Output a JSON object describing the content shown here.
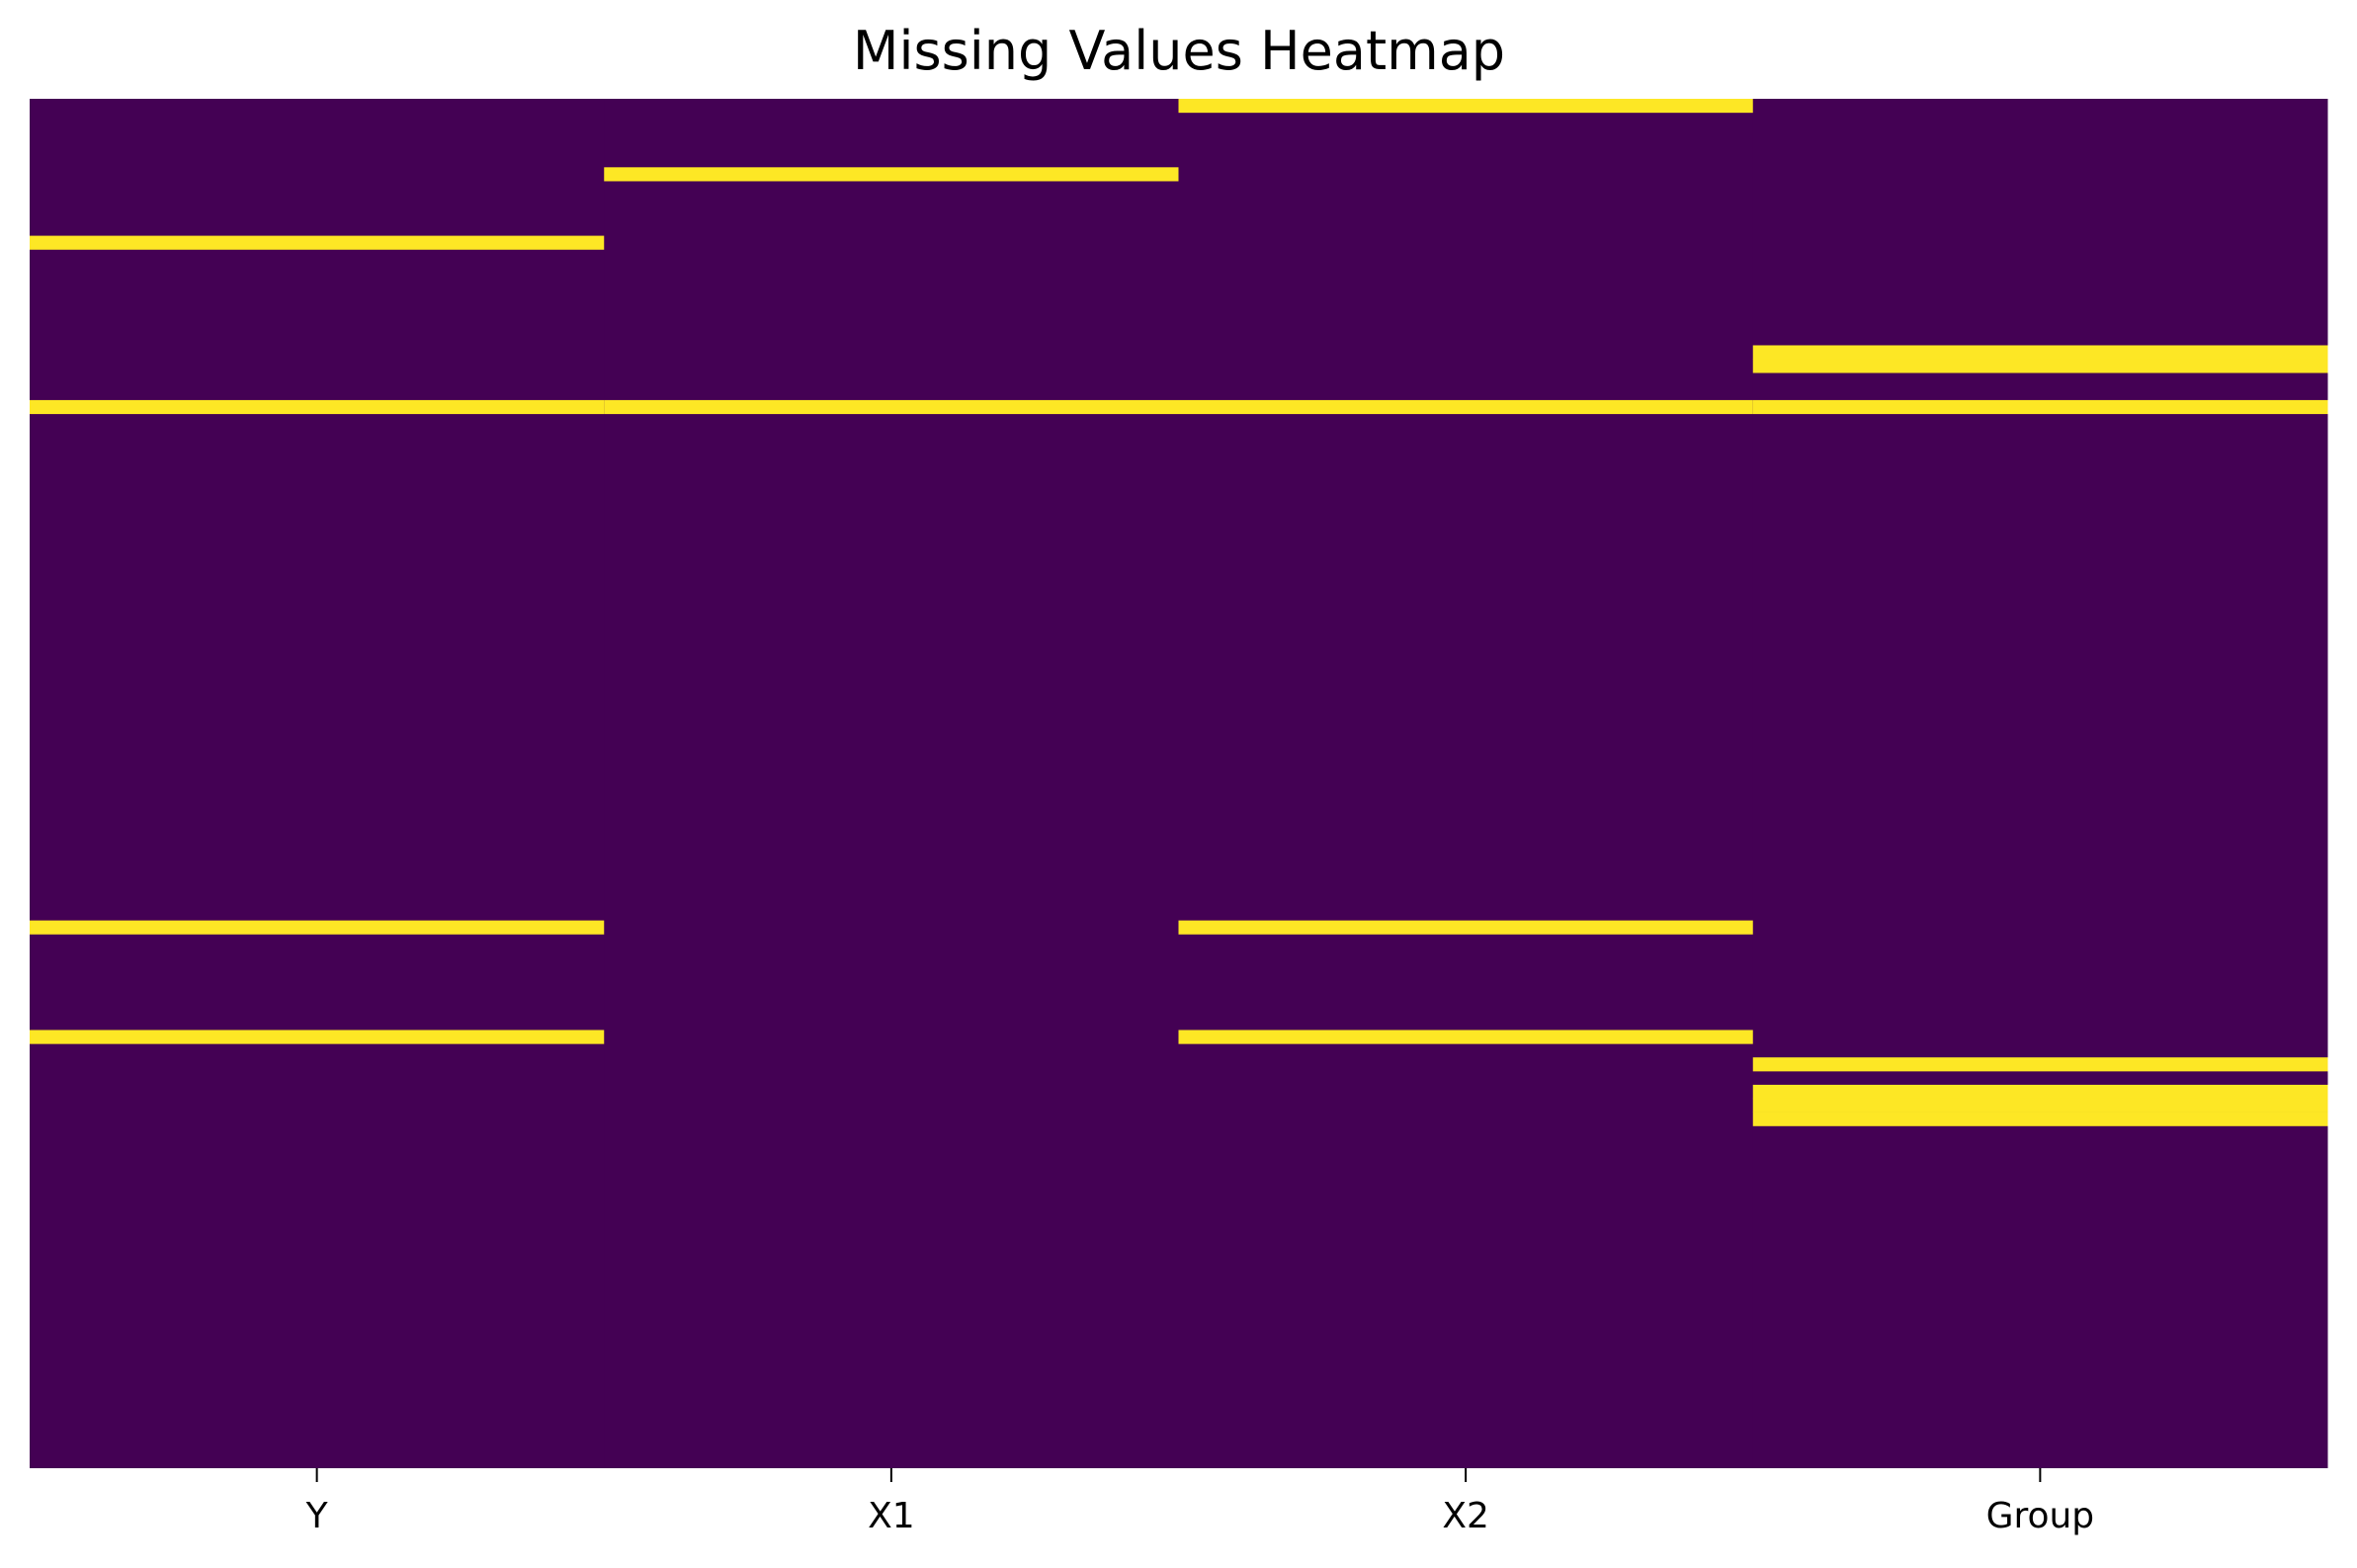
{
  "chart_data": {
    "type": "heatmap",
    "title": "Missing Values Heatmap",
    "xlabel": "",
    "ylabel": "",
    "columns": [
      "Y",
      "X1",
      "X2",
      "Group"
    ],
    "n_rows": 100,
    "values_legend": {
      "present": 0,
      "missing": 1
    },
    "missing_rows": {
      "Y": [
        10,
        22,
        60,
        68
      ],
      "X1": [
        5,
        22
      ],
      "X2": [
        0,
        22,
        60,
        68
      ],
      "Group": [
        18,
        19,
        22,
        70,
        72,
        73,
        74
      ]
    },
    "colors": {
      "present": "#440154",
      "missing": "#fde725"
    },
    "colorbar": false,
    "grid": false
  }
}
